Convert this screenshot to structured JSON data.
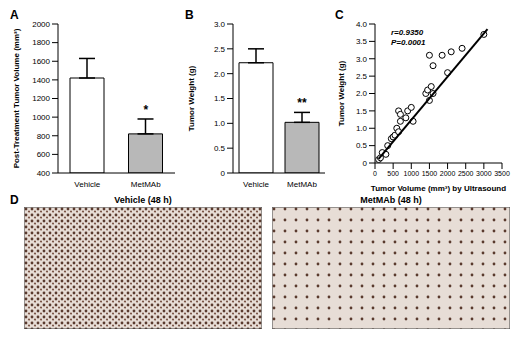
{
  "chart_data": [
    {
      "type": "bar",
      "title": "A",
      "categories": [
        "Vehicle",
        "MetMAb"
      ],
      "values": [
        1420,
        820
      ],
      "errors": [
        210,
        160
      ],
      "colors": [
        "#ffffff",
        "#b8b8b8"
      ],
      "ylabel": "Post-Treatment Tumor Volume (mm³)",
      "ylim": [
        400,
        2000
      ],
      "yticks": [
        400,
        600,
        800,
        1000,
        1200,
        1400,
        1600,
        1800,
        2000
      ],
      "annotations": [
        {
          "category": "MetMAb",
          "text": "*"
        }
      ]
    },
    {
      "type": "bar",
      "title": "B",
      "categories": [
        "Vehicle",
        "MetMAb"
      ],
      "values": [
        2.22,
        1.02
      ],
      "errors": [
        0.28,
        0.2
      ],
      "colors": [
        "#ffffff",
        "#b8b8b8"
      ],
      "ylabel": "Tumor Weight (g)",
      "ylim": [
        0,
        3
      ],
      "yticks": [
        0,
        0.5,
        {
          "value": 1,
          "label": "1.0"
        },
        1.5,
        {
          "value": 2,
          "label": "2.0"
        },
        2.5,
        {
          "value": 3,
          "label": "3.0"
        }
      ],
      "annotations": [
        {
          "category": "MetMAb",
          "text": "**"
        }
      ]
    },
    {
      "type": "scatter",
      "title": "C",
      "xlabel": "Tumor Volume (mm³) by Ultrasound",
      "ylabel": "Tumor Weight (g)",
      "x": [
        100,
        150,
        200,
        300,
        350,
        450,
        500,
        550,
        600,
        650,
        650,
        700,
        700,
        850,
        900,
        1000,
        1050,
        1400,
        1450,
        1500,
        1500,
        1550,
        1600,
        1600,
        1850,
        2000,
        2100,
        2400,
        3000
      ],
      "values": [
        0.1,
        0.15,
        0.3,
        0.25,
        0.5,
        0.7,
        0.75,
        0.8,
        1.0,
        0.9,
        1.5,
        1.2,
        1.4,
        1.3,
        1.5,
        1.6,
        1.2,
        2.0,
        2.1,
        3.1,
        1.8,
        2.2,
        2.0,
        2.8,
        3.1,
        2.6,
        3.2,
        3.3,
        3.7
      ],
      "fit": {
        "x": [
          100,
          3100
        ],
        "values": [
          0.12,
          3.85
        ]
      },
      "marker": "circle",
      "color": "#000000",
      "xlim": [
        0,
        3500
      ],
      "xticks": [
        0,
        500,
        1000,
        1500,
        2000,
        2500,
        3000,
        3500
      ],
      "ylim": [
        0,
        4
      ],
      "yticks": [
        0,
        0.5,
        {
          "value": 1,
          "label": "1.0"
        },
        1.5,
        {
          "value": 2,
          "label": "2.0"
        },
        2.5,
        {
          "value": 3,
          "label": "3.0"
        },
        3.5,
        {
          "value": 4,
          "label": "4.0"
        }
      ],
      "annotations": [
        "r=0.9350",
        "P=0.0001"
      ]
    }
  ],
  "images": {
    "title": "D",
    "captions": [
      "Vehicle (48 h)",
      "MetMAb (48 h)"
    ]
  }
}
